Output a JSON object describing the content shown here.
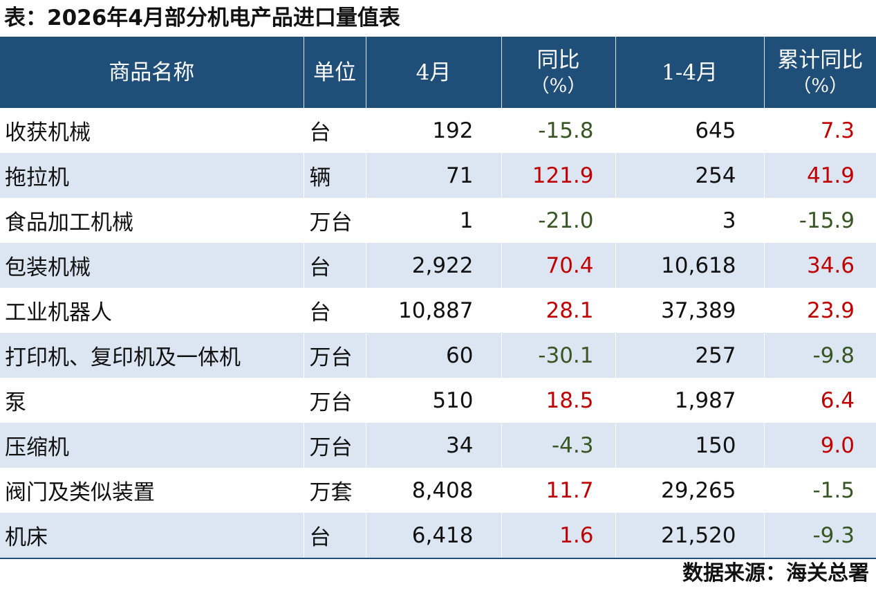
{
  "title": "表：2026年4月部分机电产品进口量值表",
  "headers": {
    "name": "商品名称",
    "unit": "单位",
    "april": "4月",
    "yoy": "同比",
    "yoy_unit": "（%）",
    "jan_apr": "1-4月",
    "cum_yoy": "累计同比",
    "cum_yoy_unit": "（%）"
  },
  "colors": {
    "header_bg": "#1f4e79",
    "stripe": "#dce6f2",
    "increase": "#c00000",
    "decrease": "#375623"
  },
  "rows": [
    {
      "name": "收获机械",
      "unit": "台",
      "april": "192",
      "yoy": "-15.8",
      "jan_apr": "645",
      "cum_yoy": "7.3"
    },
    {
      "name": "拖拉机",
      "unit": "辆",
      "april": "71",
      "yoy": "121.9",
      "jan_apr": "254",
      "cum_yoy": "41.9"
    },
    {
      "name": "食品加工机械",
      "unit": "万台",
      "april": "1",
      "yoy": "-21.0",
      "jan_apr": "3",
      "cum_yoy": "-15.9"
    },
    {
      "name": "包装机械",
      "unit": "台",
      "april": "2,922",
      "yoy": "70.4",
      "jan_apr": "10,618",
      "cum_yoy": "34.6"
    },
    {
      "name": "工业机器人",
      "unit": "台",
      "april": "10,887",
      "yoy": "28.1",
      "jan_apr": "37,389",
      "cum_yoy": "23.9"
    },
    {
      "name": "打印机、复印机及一体机",
      "unit": "万台",
      "april": "60",
      "yoy": "-30.1",
      "jan_apr": "257",
      "cum_yoy": "-9.8"
    },
    {
      "name": "泵",
      "unit": "万台",
      "april": "510",
      "yoy": "18.5",
      "jan_apr": "1,987",
      "cum_yoy": "6.4"
    },
    {
      "name": "压缩机",
      "unit": "万台",
      "april": "34",
      "yoy": "-4.3",
      "jan_apr": "150",
      "cum_yoy": "9.0"
    },
    {
      "name": "阀门及类似装置",
      "unit": "万套",
      "april": "8,408",
      "yoy": "11.7",
      "jan_apr": "29,265",
      "cum_yoy": "-1.5"
    },
    {
      "name": "机床",
      "unit": "台",
      "april": "6,418",
      "yoy": "1.6",
      "jan_apr": "21,520",
      "cum_yoy": "-9.3"
    }
  ],
  "source": "数据来源：海关总署"
}
